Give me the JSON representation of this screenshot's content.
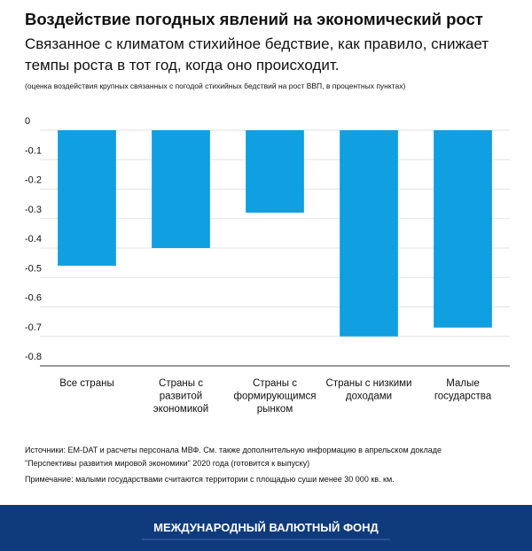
{
  "chart_data": {
    "type": "bar",
    "title": "Воздействие погодных явлений на экономический рост",
    "subtitle": [
      "Связанное с климатом стихийное бедствие, как правило, снижает",
      "темпы роста в тот год, когда оно происходит."
    ],
    "y_label": "(оценка  воздействия крупных связанных с погодой стихийных бедствий на рост ВВП,  в процентных пунктах)",
    "categories": [
      "Все страны",
      "Страны с\nразвитой\nэкономикой",
      "Страны с\nформирующимся\nрынком",
      "Страны с низкими\nдоходами",
      "Малые\nгосударства"
    ],
    "values": [
      -0.46,
      -0.4,
      -0.28,
      -0.7,
      -0.67
    ],
    "color": "#109fe0",
    "ylim": [
      -0.8,
      0
    ],
    "yticks": [
      0,
      -0.1,
      -0.2,
      -0.3,
      -0.4,
      -0.5,
      -0.6,
      -0.7,
      -0.8
    ],
    "grid": true,
    "notes": [
      "Источники: EM-DAT и расчеты персонала МВФ. См. также дополнительную информацию в апрельском докладе",
      "\"Перспективы развития мировой экономики\"  2020 года (готовится к выпуску)",
      "Примечание: малыми государствами считаются территории с площадью суши менее 30 000 кв. км."
    ],
    "footer": "МЕЖДУНАРОДНЫЙ ВАЛЮТНЫЙ ФОНД"
  }
}
